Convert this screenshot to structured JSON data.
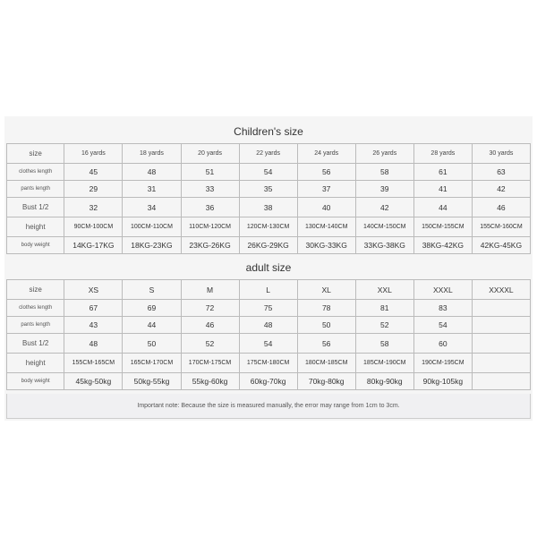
{
  "colors": {
    "background": "#f5f5f5",
    "border": "#bbbbbb",
    "text": "#333333",
    "footnote_bg": "#f0f0f2"
  },
  "children": {
    "title": "Children's size",
    "row_labels": [
      "size",
      "clothes length",
      "pants length",
      "Bust 1/2",
      "height",
      "body weight"
    ],
    "headers": [
      "16 yards",
      "18 yards",
      "20 yards",
      "22 yards",
      "24 yards",
      "26 yards",
      "28 yards",
      "30 yards"
    ],
    "rows": [
      [
        "45",
        "48",
        "51",
        "54",
        "56",
        "58",
        "61",
        "63"
      ],
      [
        "29",
        "31",
        "33",
        "35",
        "37",
        "39",
        "41",
        "42"
      ],
      [
        "32",
        "34",
        "36",
        "38",
        "40",
        "42",
        "44",
        "46"
      ],
      [
        "90CM-100CM",
        "100CM-110CM",
        "110CM-120CM",
        "120CM-130CM",
        "130CM-140CM",
        "140CM-150CM",
        "150CM-155CM",
        "155CM-160CM"
      ],
      [
        "14KG-17KG",
        "18KG-23KG",
        "23KG-26KG",
        "26KG-29KG",
        "30KG-33KG",
        "33KG-38KG",
        "38KG-42KG",
        "42KG-45KG"
      ]
    ]
  },
  "adult": {
    "title": "adult size",
    "row_labels": [
      "size",
      "clothes length",
      "pants length",
      "Bust 1/2",
      "height",
      "body weight"
    ],
    "headers": [
      "XS",
      "S",
      "M",
      "L",
      "XL",
      "XXL",
      "XXXL",
      "XXXXL"
    ],
    "rows": [
      [
        "67",
        "69",
        "72",
        "75",
        "78",
        "81",
        "83",
        ""
      ],
      [
        "43",
        "44",
        "46",
        "48",
        "50",
        "52",
        "54",
        ""
      ],
      [
        "48",
        "50",
        "52",
        "54",
        "56",
        "58",
        "60",
        ""
      ],
      [
        "155CM-165CM",
        "165CM-170CM",
        "170CM-175CM",
        "175CM-180CM",
        "180CM-185CM",
        "185CM-190CM",
        "190CM-195CM",
        ""
      ],
      [
        "45kg-50kg",
        "50kg-55kg",
        "55kg-60kg",
        "60kg-70kg",
        "70kg-80kg",
        "80kg-90kg",
        "90kg-105kg",
        ""
      ]
    ]
  },
  "footnote": "Important note: Because the size is measured manually, the error may range from 1cm to 3cm."
}
